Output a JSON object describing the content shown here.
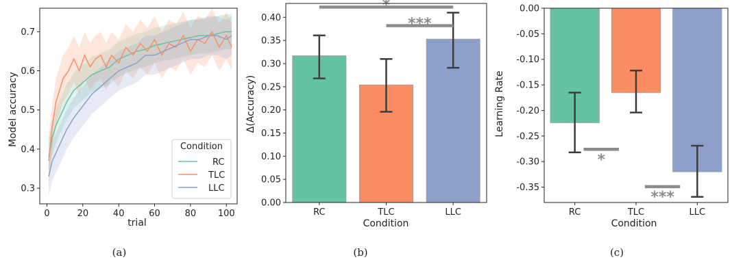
{
  "captions": [
    "(a)",
    "(b)",
    "(c)"
  ],
  "colors": {
    "RC": "#66c2a5",
    "TLC": "#fc8d62",
    "LLC": "#8da0cb",
    "axis": "#222222",
    "errbar": "#3d3d3d",
    "sig": "#8c8c8c"
  },
  "chart_data": [
    {
      "type": "line",
      "xlabel": "trial",
      "ylabel": "Model accuracy",
      "xlim": [
        -4,
        106
      ],
      "ylim": [
        0.26,
        0.76
      ],
      "xticks": [
        0,
        20,
        40,
        60,
        80,
        100
      ],
      "yticks": [
        0.3,
        0.4,
        0.5,
        0.6,
        0.7
      ],
      "legend": {
        "title": "Condition",
        "position": "bottom-right"
      },
      "series": [
        {
          "name": "RC",
          "points": [
            [
              1,
              0.38
            ],
            [
              3,
              0.43
            ],
            [
              5,
              0.46
            ],
            [
              8,
              0.49
            ],
            [
              11,
              0.52
            ],
            [
              15,
              0.55
            ],
            [
              20,
              0.57
            ],
            [
              25,
              0.59
            ],
            [
              30,
              0.6
            ],
            [
              35,
              0.61
            ],
            [
              40,
              0.63
            ],
            [
              45,
              0.64
            ],
            [
              50,
              0.65
            ],
            [
              55,
              0.655
            ],
            [
              60,
              0.665
            ],
            [
              65,
              0.67
            ],
            [
              70,
              0.675
            ],
            [
              75,
              0.68
            ],
            [
              80,
              0.685
            ],
            [
              85,
              0.69
            ],
            [
              90,
              0.69
            ],
            [
              95,
              0.695
            ],
            [
              100,
              0.7
            ],
            [
              103,
              0.7
            ]
          ],
          "band": 0.045
        },
        {
          "name": "TLC",
          "points": [
            [
              1,
              0.37
            ],
            [
              3,
              0.46
            ],
            [
              5,
              0.52
            ],
            [
              7,
              0.55
            ],
            [
              9,
              0.58
            ],
            [
              12,
              0.6
            ],
            [
              15,
              0.63
            ],
            [
              18,
              0.6
            ],
            [
              21,
              0.64
            ],
            [
              24,
              0.61
            ],
            [
              27,
              0.63
            ],
            [
              30,
              0.64
            ],
            [
              33,
              0.61
            ],
            [
              36,
              0.64
            ],
            [
              40,
              0.62
            ],
            [
              44,
              0.66
            ],
            [
              48,
              0.64
            ],
            [
              52,
              0.67
            ],
            [
              56,
              0.65
            ],
            [
              60,
              0.68
            ],
            [
              64,
              0.64
            ],
            [
              68,
              0.67
            ],
            [
              72,
              0.66
            ],
            [
              76,
              0.69
            ],
            [
              80,
              0.65
            ],
            [
              84,
              0.68
            ],
            [
              88,
              0.67
            ],
            [
              92,
              0.7
            ],
            [
              96,
              0.66
            ],
            [
              100,
              0.69
            ],
            [
              103,
              0.66
            ]
          ],
          "band": 0.06
        },
        {
          "name": "LLC",
          "points": [
            [
              1,
              0.33
            ],
            [
              3,
              0.37
            ],
            [
              5,
              0.39
            ],
            [
              8,
              0.42
            ],
            [
              11,
              0.45
            ],
            [
              15,
              0.48
            ],
            [
              20,
              0.51
            ],
            [
              25,
              0.54
            ],
            [
              30,
              0.56
            ],
            [
              35,
              0.58
            ],
            [
              40,
              0.6
            ],
            [
              45,
              0.61
            ],
            [
              50,
              0.62
            ],
            [
              55,
              0.64
            ],
            [
              60,
              0.64
            ],
            [
              65,
              0.65
            ],
            [
              70,
              0.66
            ],
            [
              75,
              0.67
            ],
            [
              80,
              0.68
            ],
            [
              85,
              0.68
            ],
            [
              90,
              0.69
            ],
            [
              95,
              0.69
            ],
            [
              100,
              0.68
            ],
            [
              103,
              0.69
            ]
          ],
          "band": 0.05
        }
      ]
    },
    {
      "type": "bar",
      "xlabel": "Condition",
      "ylabel": "Δ(Accuracy)",
      "ylim": [
        0,
        0.43
      ],
      "yticks": [
        0.0,
        0.05,
        0.1,
        0.15,
        0.2,
        0.25,
        0.3,
        0.35,
        0.4
      ],
      "categories": [
        "RC",
        "TLC",
        "LLC"
      ],
      "values": [
        0.317,
        0.254,
        0.353
      ],
      "err_low": [
        0.268,
        0.196,
        0.291
      ],
      "err_high": [
        0.361,
        0.31,
        0.41
      ],
      "significance": [
        {
          "from": 0,
          "to": 2,
          "y": 0.422,
          "label": "*"
        },
        {
          "from": 1,
          "to": 2,
          "y": 0.382,
          "label": "***"
        }
      ]
    },
    {
      "type": "bar",
      "xlabel": "Condition",
      "ylabel": "Learning Rate",
      "ylim": [
        -0.38,
        0.0
      ],
      "yticks": [
        0.0,
        -0.05,
        -0.1,
        -0.15,
        -0.2,
        -0.25,
        -0.3,
        -0.35
      ],
      "categories": [
        "RC",
        "TLC",
        "LLC"
      ],
      "values": [
        -0.224,
        -0.165,
        -0.32
      ],
      "err_low": [
        -0.282,
        -0.204,
        -0.369
      ],
      "err_high": [
        -0.165,
        -0.122,
        -0.269
      ],
      "significance": [
        {
          "from": 0,
          "to": 1,
          "y": -0.276,
          "label": "*"
        },
        {
          "from": 1,
          "to": 2,
          "y": -0.349,
          "label": "***"
        }
      ]
    }
  ]
}
